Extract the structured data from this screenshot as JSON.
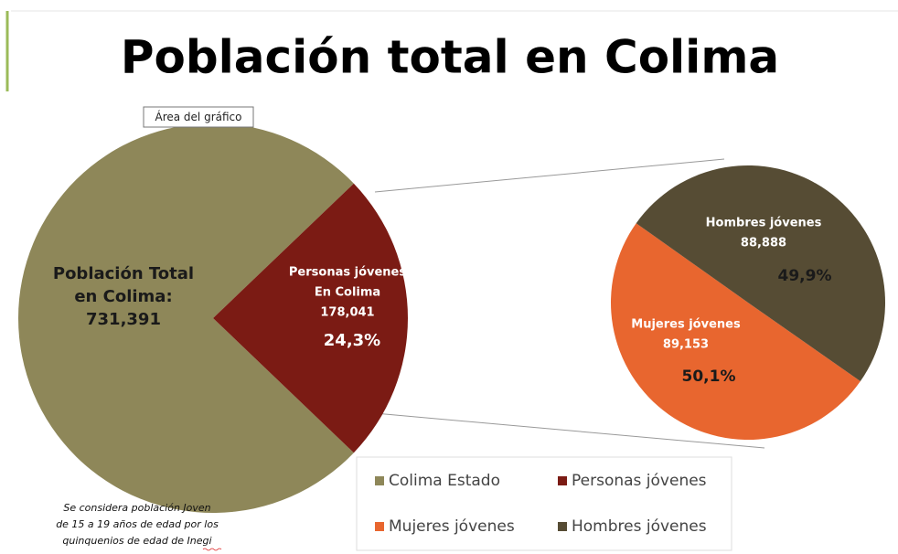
{
  "chart_data": [
    {
      "type": "pie",
      "title": "Población total en Colima",
      "categories": [
        "Colima Estado",
        "Personas jóvenes"
      ],
      "values": [
        75.7,
        24.3
      ],
      "colors": [
        "#8e8759",
        "#7b1b14"
      ],
      "slice_labels": [
        [
          "Población Total",
          "en Colima:",
          "731,391"
        ],
        [
          "Personas jóvenes",
          "En Colima",
          "178,041",
          "24,3%"
        ]
      ]
    },
    {
      "type": "pie",
      "categories": [
        "Mujeres jóvenes",
        "Hombres jóvenes"
      ],
      "values": [
        50.1,
        49.9
      ],
      "value_labels": [
        "50,1%",
        "49,9%"
      ],
      "colors": [
        "#e8662f",
        "#564c34"
      ],
      "slice_labels": [
        [
          "Mujeres jóvenes",
          "89,153"
        ],
        [
          "Hombres jóvenes",
          "88,888"
        ]
      ]
    }
  ],
  "tag": "Área del gráfico",
  "footnote": [
    "Se considera población Joven",
    "de 15 a 19 años de edad por los",
    "quinquenios de edad de Inegi"
  ]
}
